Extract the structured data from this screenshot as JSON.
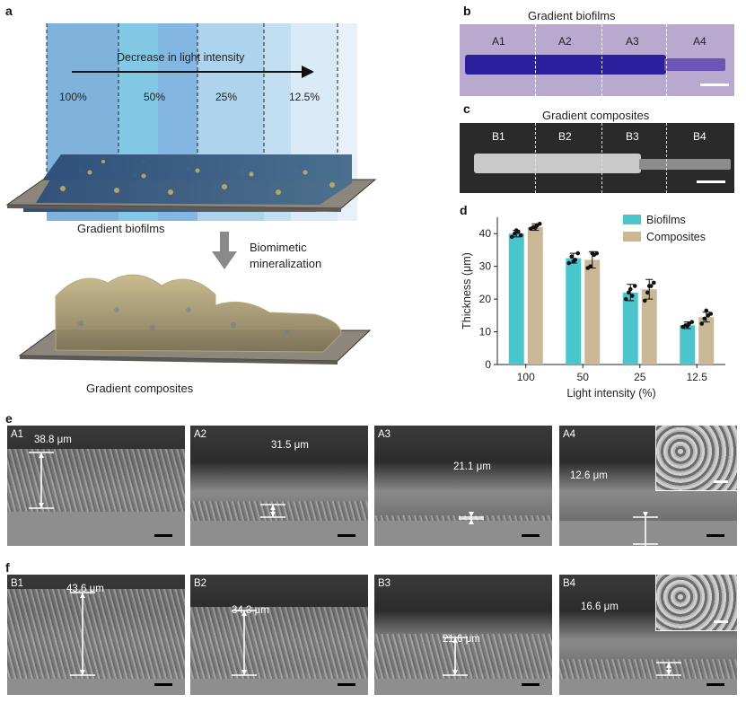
{
  "panel_a": {
    "label": "a",
    "arrow_text": "Decrease in light intensity",
    "intensities": [
      "100%",
      "50%",
      "25%",
      "12.5%"
    ],
    "biofilm_caption": "Gradient biofilms",
    "process_label_line1": "Biomimetic",
    "process_label_line2": "mineralization",
    "composite_caption": "Gradient composites"
  },
  "panel_b": {
    "label": "b",
    "title": "Gradient biofilms",
    "segments": [
      "A1",
      "A2",
      "A3",
      "A4"
    ]
  },
  "panel_c": {
    "label": "c",
    "title": "Gradient composites",
    "segments": [
      "B1",
      "B2",
      "B3",
      "B4"
    ]
  },
  "panel_d": {
    "label": "d",
    "chart_data": {
      "type": "bar",
      "xlabel": "Light intensity (%)",
      "ylabel": "Thickness (μm)",
      "categories": [
        "100",
        "50",
        "25",
        "12.5"
      ],
      "ylim": [
        0,
        45
      ],
      "yticks": [
        0,
        10,
        20,
        30,
        40
      ],
      "legend_position": "top-right",
      "series": [
        {
          "name": "Biofilms",
          "color": "#4bc5cc",
          "values": [
            40,
            32.5,
            22,
            12
          ],
          "errors": [
            1,
            1.5,
            2.5,
            1
          ],
          "points": [
            [
              39,
              40,
              40.5,
              39.5,
              41
            ],
            [
              31,
              33,
              32,
              34,
              31.5
            ],
            [
              20,
              22,
              21,
              24,
              23
            ],
            [
              11.5,
              12,
              12.5,
              13,
              11.8
            ]
          ]
        },
        {
          "name": "Composites",
          "color": "#c9b895",
          "values": [
            42,
            32,
            23,
            14.5
          ],
          "errors": [
            1,
            2.5,
            3,
            1.5
          ],
          "points": [
            [
              41.5,
              42,
              42.5,
              43,
              41.8
            ],
            [
              29.5,
              30,
              33.5,
              34,
              34
            ],
            [
              19.5,
              22,
              24,
              25,
              24
            ],
            [
              12.5,
              14,
              15,
              15.5,
              16.5
            ]
          ]
        }
      ]
    }
  },
  "panel_e": {
    "label": "e",
    "images": [
      {
        "id": "A1",
        "value": "38.8 μm"
      },
      {
        "id": "A2",
        "value": "31.5 μm"
      },
      {
        "id": "A3",
        "value": "21.1 μm"
      },
      {
        "id": "A4",
        "value": "12.6 μm"
      }
    ]
  },
  "panel_f": {
    "label": "f",
    "images": [
      {
        "id": "B1",
        "value": "43.6 μm"
      },
      {
        "id": "B2",
        "value": "34.3 μm"
      },
      {
        "id": "B3",
        "value": "21.6 μm"
      },
      {
        "id": "B4",
        "value": "16.6 μm"
      }
    ]
  }
}
